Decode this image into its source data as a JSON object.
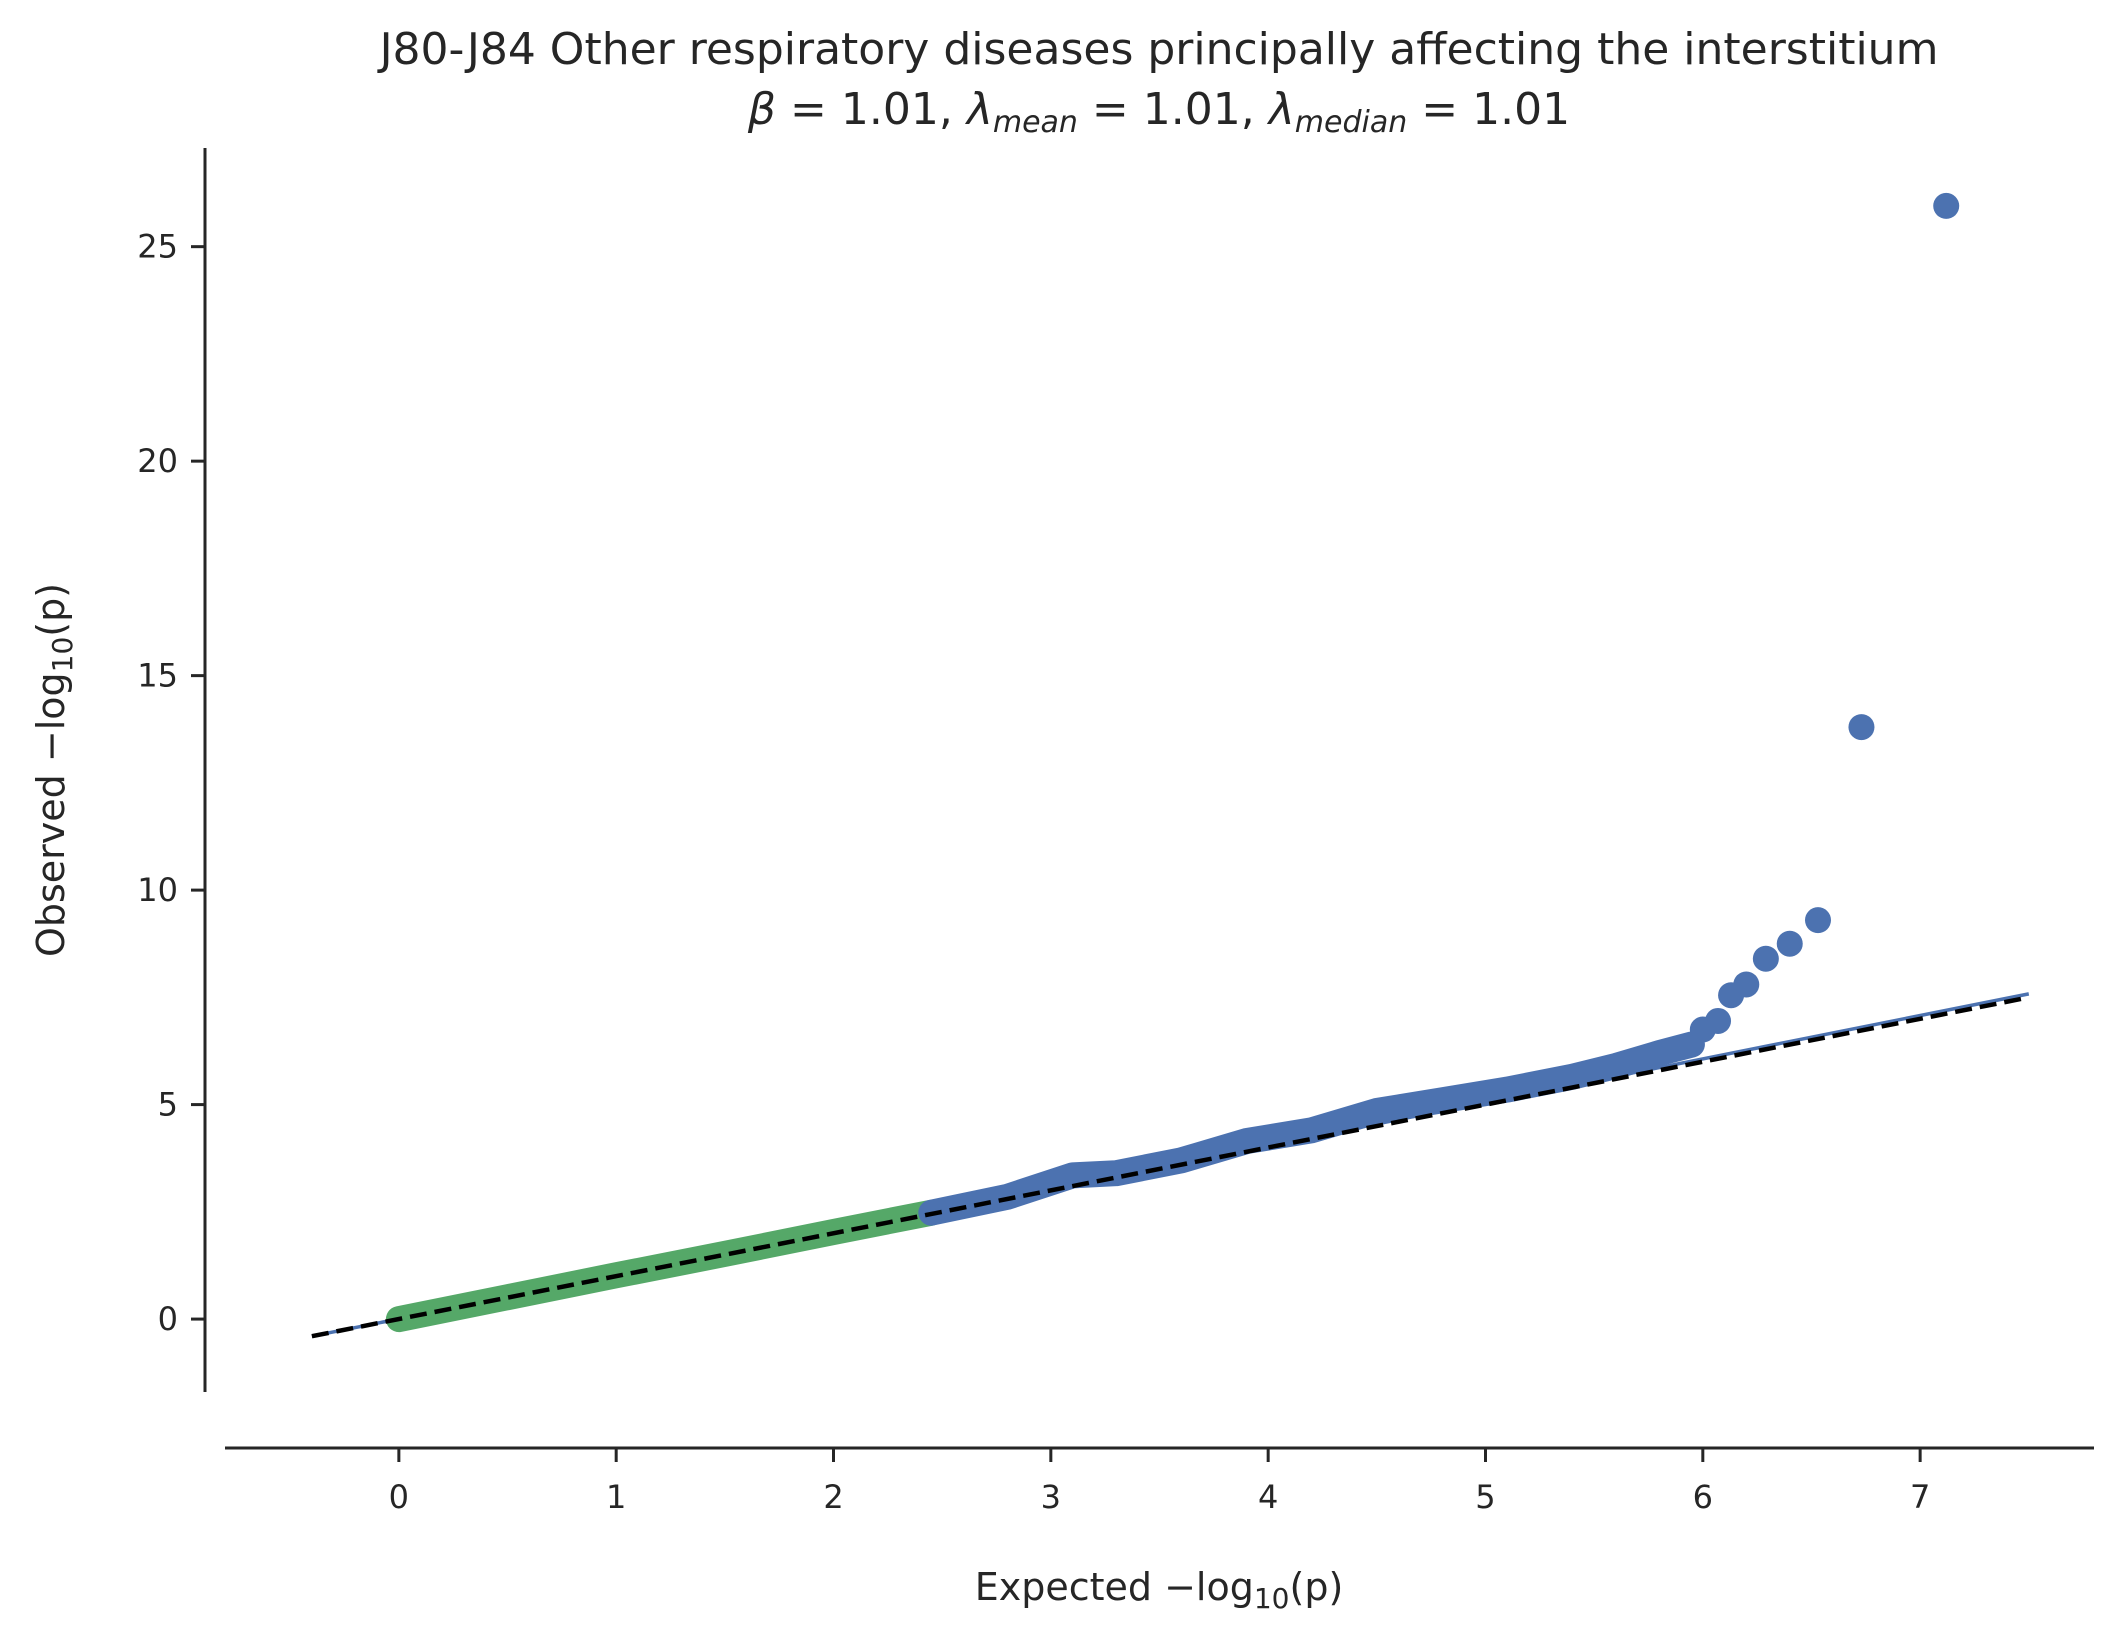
{
  "chart_data": {
    "type": "scatter",
    "title": "J80-J84 Other respiratory diseases principally affecting the interstitium",
    "subtitle": {
      "beta_symbol": "β",
      "lambda_symbol": "λ",
      "mean_sub": "mean",
      "median_sub": "median",
      "beta": "1.01",
      "lambda_mean": "1.01",
      "lambda_median": "1.01"
    },
    "xlabel": {
      "prefix": "Expected −log",
      "sub": "10",
      "suffix": "(p)"
    },
    "ylabel": {
      "prefix": "Observed −log",
      "sub": "10",
      "suffix": "(p)"
    },
    "xlim": [
      -0.8,
      7.8
    ],
    "ylim": [
      -1.7,
      27.3
    ],
    "xticks": [
      0,
      1,
      2,
      3,
      4,
      5,
      6,
      7
    ],
    "yticks": [
      0,
      5,
      10,
      15,
      20,
      25
    ],
    "grid": false,
    "colors": {
      "significant": "#4c72b0",
      "null_band": "#55a868",
      "reference_line": "#000000",
      "fit_line": "#4c72b0"
    },
    "reference_line": {
      "style": "dashed",
      "points": [
        [
          -0.4,
          -0.4
        ],
        [
          7.5,
          7.5
        ]
      ]
    },
    "fit_line": {
      "style": "solid",
      "points": [
        [
          -0.4,
          -0.4
        ],
        [
          7.5,
          7.58
        ]
      ]
    },
    "series": [
      {
        "style": "thick-band",
        "color": "#55a868",
        "points": [
          [
            0,
            0
          ],
          [
            0.5,
            0.51
          ],
          [
            1.0,
            1.02
          ],
          [
            1.5,
            1.52
          ],
          [
            2.0,
            2.03
          ],
          [
            2.45,
            2.48
          ]
        ]
      },
      {
        "style": "thick-band",
        "color": "#4c72b0",
        "points": [
          [
            2.45,
            2.48
          ],
          [
            2.8,
            2.85
          ],
          [
            3.1,
            3.35
          ],
          [
            3.3,
            3.4
          ],
          [
            3.6,
            3.7
          ],
          [
            3.9,
            4.15
          ],
          [
            4.2,
            4.4
          ],
          [
            4.5,
            4.85
          ],
          [
            4.8,
            5.1
          ],
          [
            5.1,
            5.35
          ],
          [
            5.4,
            5.65
          ],
          [
            5.6,
            5.9
          ],
          [
            5.8,
            6.2
          ],
          [
            5.95,
            6.4
          ]
        ]
      },
      {
        "style": "points",
        "color": "#4c72b0",
        "points": [
          [
            6.0,
            6.75
          ],
          [
            6.07,
            6.95
          ],
          [
            6.13,
            7.55
          ],
          [
            6.2,
            7.8
          ],
          [
            6.29,
            8.4
          ],
          [
            6.4,
            8.75
          ],
          [
            6.53,
            9.3
          ],
          [
            6.73,
            13.8
          ],
          [
            7.12,
            25.95
          ]
        ]
      }
    ]
  }
}
